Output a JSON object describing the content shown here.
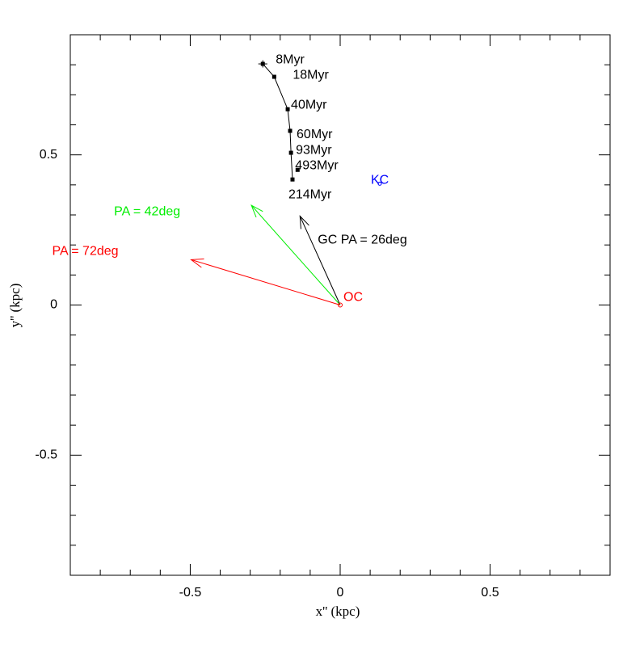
{
  "chart_data": {
    "type": "scatter",
    "xlabel": "x'' (kpc)",
    "ylabel": "y'' (kpc)",
    "xlim": [
      -0.9,
      0.9
    ],
    "ylim": [
      -0.9,
      0.9
    ],
    "xticks": [
      -0.5,
      0,
      0.5
    ],
    "yticks": [
      -0.5,
      0,
      0.5
    ],
    "xticks_minor": [
      -0.8,
      -0.7,
      -0.6,
      -0.4,
      -0.3,
      -0.2,
      -0.1,
      0.1,
      0.2,
      0.3,
      0.4,
      0.6,
      0.7,
      0.8
    ],
    "yticks_minor": [
      -0.8,
      -0.7,
      -0.6,
      -0.4,
      -0.3,
      -0.2,
      -0.1,
      0.1,
      0.2,
      0.3,
      0.4,
      0.6,
      0.7,
      0.8
    ],
    "series": [
      {
        "color": "#000000",
        "labels": [
          "8Myr",
          "18Myr",
          "40Myr",
          "60Myr",
          "93Myr",
          "214Myr",
          "493Myr"
        ],
        "x": [
          -0.258,
          -0.22,
          -0.175,
          -0.167,
          -0.164,
          -0.159,
          -0.142
        ],
        "values": [
          0.803,
          0.76,
          0.652,
          0.58,
          0.507,
          0.418,
          0.45
        ],
        "xerr": [
          0.015,
          null,
          null,
          null,
          null,
          null,
          null
        ],
        "yerr": [
          0.012,
          null,
          null,
          null,
          null,
          null,
          null
        ]
      }
    ],
    "origin": {
      "label": "OC",
      "color": "#ff0000",
      "x": 0,
      "y": 0
    },
    "marker": {
      "label": "KC",
      "color": "#0000ff",
      "x": 0.132,
      "y": 0.404
    },
    "arrows": [
      {
        "label": "GC PA = 26deg",
        "color": "#000000",
        "x": -0.134,
        "y": 0.296
      },
      {
        "label": "PA = 42deg",
        "color": "#00ee00",
        "x": -0.296,
        "y": 0.332
      },
      {
        "label": "PA = 72deg",
        "color": "#ff0000",
        "x": -0.497,
        "y": 0.151
      }
    ]
  }
}
